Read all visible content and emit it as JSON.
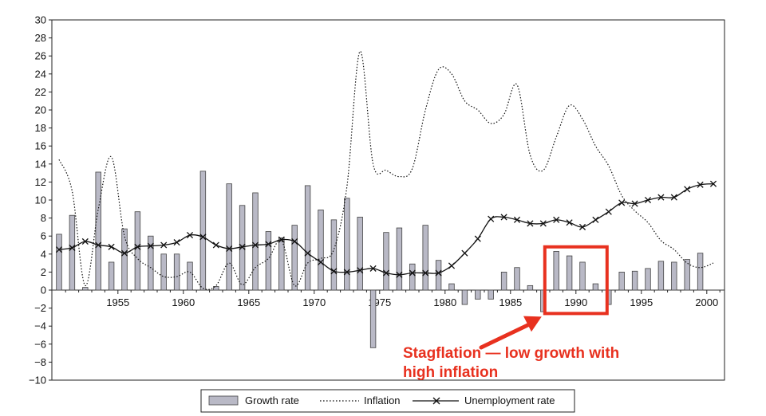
{
  "chart_data": {
    "type": "bar+line",
    "x_years": [
      1951,
      1952,
      1953,
      1954,
      1955,
      1956,
      1957,
      1958,
      1959,
      1960,
      1961,
      1962,
      1963,
      1964,
      1965,
      1966,
      1967,
      1968,
      1969,
      1970,
      1971,
      1972,
      1973,
      1974,
      1975,
      1976,
      1977,
      1978,
      1979,
      1980,
      1981,
      1982,
      1983,
      1984,
      1985,
      1986,
      1987,
      1988,
      1989,
      1990,
      1991,
      1992,
      1993,
      1994,
      1995,
      1996,
      1997,
      1998,
      1999,
      2000
    ],
    "ylim": [
      -10,
      30
    ],
    "yticks": [
      "30",
      "28",
      "26",
      "24",
      "22",
      "20",
      "18",
      "16",
      "14",
      "12",
      "10",
      "8",
      "6",
      "4",
      "2",
      "0",
      "−2",
      "−4",
      "−6",
      "−8",
      "−10"
    ],
    "xtick_labels": [
      "1955",
      "1960",
      "1965",
      "1970",
      "1975",
      "1980",
      "1985",
      "1990",
      "1995",
      "2000"
    ],
    "series": [
      {
        "name": "Growth rate",
        "kind": "bar",
        "color": "#b9b9c6",
        "values": [
          6.2,
          8.3,
          0.3,
          13.1,
          3.1,
          6.8,
          8.7,
          6.0,
          4.0,
          4.0,
          3.1,
          13.2,
          0.4,
          11.8,
          9.4,
          10.8,
          6.5,
          5.8,
          7.2,
          11.6,
          8.9,
          7.8,
          10.2,
          8.1,
          -6.4,
          6.4,
          6.9,
          2.9,
          7.2,
          3.3,
          0.7,
          -1.6,
          -1.0,
          -1.0,
          2.0,
          2.5,
          0.5,
          -2.4,
          4.3,
          3.8,
          3.1,
          0.7,
          -1.6,
          2.0,
          2.1,
          2.4,
          3.2,
          3.1,
          3.4,
          4.1
        ]
      },
      {
        "name": "Inflation",
        "kind": "dotted-line",
        "color": "#111111",
        "x": [
          1951,
          1952,
          1953,
          1954,
          1955,
          1956,
          1957,
          1958,
          1959,
          1960,
          1961,
          1962,
          1963,
          1964,
          1965,
          1966,
          1967,
          1968,
          1969,
          1970,
          1971,
          1972,
          1973,
          1974,
          1975,
          1976,
          1977,
          1978,
          1979,
          1980,
          1981,
          1982,
          1983,
          1984,
          1985,
          1986,
          1987,
          1988,
          1989,
          1990,
          1991,
          1992,
          1993,
          1994,
          1995,
          1996,
          1997,
          1998,
          1999,
          2000,
          2001
        ],
        "values": [
          14.5,
          11.0,
          0.5,
          9.0,
          14.8,
          6.0,
          3.5,
          2.5,
          1.5,
          1.5,
          2.0,
          0.2,
          0.5,
          3.0,
          0.6,
          2.5,
          3.5,
          5.5,
          0.5,
          3.0,
          3.5,
          4.5,
          11.5,
          26.5,
          14.0,
          13.3,
          12.6,
          13.5,
          20.0,
          24.5,
          24.0,
          21.0,
          20.0,
          18.5,
          19.5,
          22.8,
          15.0,
          13.3,
          17.0,
          20.5,
          19.0,
          16.0,
          13.8,
          10.5,
          8.8,
          7.5,
          5.5,
          4.5,
          3.0,
          2.5,
          3.0
        ]
      },
      {
        "name": "Unemployment rate",
        "kind": "line-x-markers",
        "color": "#111111",
        "x": [
          1951,
          1952,
          1953,
          1954,
          1955,
          1956,
          1957,
          1958,
          1959,
          1960,
          1961,
          1962,
          1963,
          1964,
          1965,
          1966,
          1967,
          1968,
          1969,
          1970,
          1971,
          1972,
          1973,
          1974,
          1975,
          1976,
          1977,
          1978,
          1979,
          1980,
          1981,
          1982,
          1983,
          1984,
          1985,
          1986,
          1987,
          1988,
          1989,
          1990,
          1991,
          1992,
          1993,
          1994,
          1995,
          1996,
          1997,
          1998,
          1999,
          2000,
          2001
        ],
        "values": [
          4.5,
          4.7,
          5.4,
          5.0,
          4.8,
          4.1,
          4.8,
          4.9,
          5.0,
          5.3,
          6.1,
          5.9,
          5.0,
          4.6,
          4.8,
          5.0,
          5.1,
          5.6,
          5.4,
          4.1,
          3.1,
          2.1,
          2.0,
          2.2,
          2.4,
          1.9,
          1.7,
          1.9,
          1.9,
          1.9,
          2.7,
          4.1,
          5.7,
          7.9,
          8.1,
          7.8,
          7.4,
          7.4,
          7.8,
          7.5,
          7.0,
          7.8,
          8.7,
          9.7,
          9.6,
          10.0,
          10.3,
          10.3,
          11.2,
          11.7,
          11.8
        ]
      }
    ],
    "legend": {
      "placement": "bottom-center",
      "labels": [
        "Growth rate",
        "Inflation",
        "Unemployment rate"
      ]
    },
    "annotation": {
      "lines": [
        "Stagflation — low growth with",
        "high inflation"
      ],
      "color": "#e8311f",
      "box_x_range": [
        1988,
        1993
      ],
      "box_y_range": [
        -2.6,
        4.8
      ],
      "arrow_points_to": [
        1988,
        -2.6
      ]
    }
  }
}
